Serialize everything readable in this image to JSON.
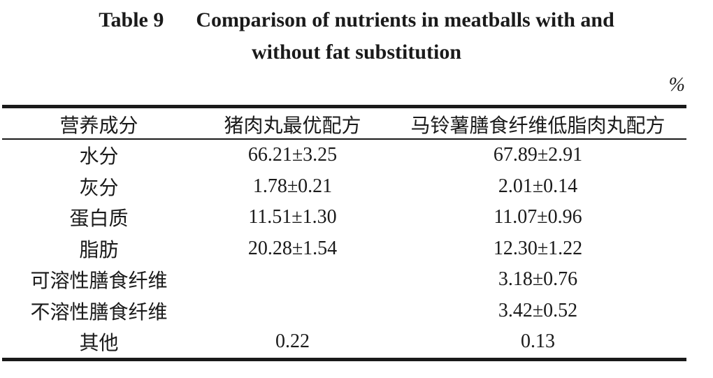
{
  "caption": {
    "table_number": "Table 9",
    "title_line1": "Comparison of nutrients in meatballs with and",
    "title_line2": "without fat substitution"
  },
  "unit": "%",
  "table": {
    "headers": [
      "营养成分",
      "猪肉丸最优配方",
      "马铃薯膳食纤维低脂肉丸配方"
    ],
    "rows": [
      [
        "水分",
        "66.21±3.25",
        "67.89±2.91"
      ],
      [
        "灰分",
        "1.78±0.21",
        "2.01±0.14"
      ],
      [
        "蛋白质",
        "11.51±1.30",
        "11.07±0.96"
      ],
      [
        "脂肪",
        "20.28±1.54",
        "12.30±1.22"
      ],
      [
        "可溶性膳食纤维",
        "",
        "3.18±0.76"
      ],
      [
        "不溶性膳食纤维",
        "",
        "3.42±0.52"
      ],
      [
        "其他",
        "0.22",
        "0.13"
      ]
    ]
  }
}
